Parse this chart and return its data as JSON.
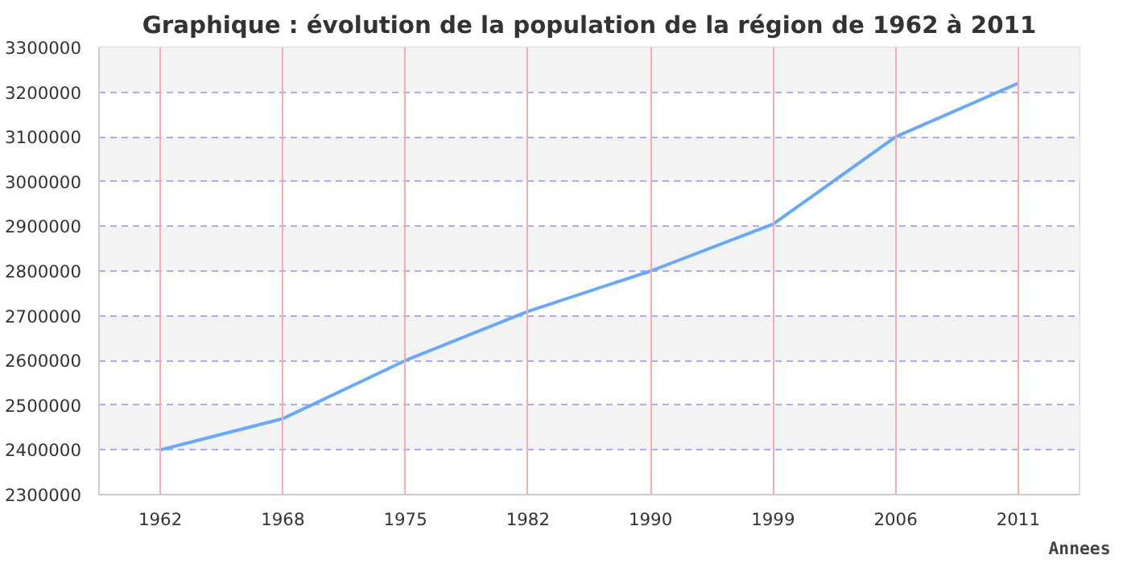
{
  "chart_data": {
    "type": "line",
    "title": "Graphique : évolution de la population de la région de 1962 à 2011",
    "xlabel": "Annees",
    "categories": [
      "1962",
      "1968",
      "1975",
      "1982",
      "1990",
      "1999",
      "2006",
      "2011"
    ],
    "series": [
      {
        "color": "#66aaff",
        "values": [
          2400000,
          2470000,
          2600000,
          2710000,
          2800000,
          2905000,
          3100000,
          3220000
        ]
      }
    ],
    "ylim": [
      2300000,
      3300000
    ],
    "yticks": [
      2300000,
      2400000,
      2500000,
      2600000,
      2700000,
      2800000,
      2900000,
      3000000,
      3100000,
      3200000,
      3300000
    ],
    "grid": true
  }
}
